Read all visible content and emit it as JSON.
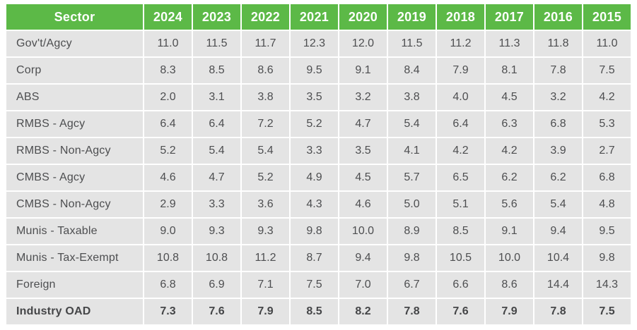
{
  "colors": {
    "header_bg": "#5cb947",
    "header_text": "#ffffff",
    "cell_bg": "#e4e4e4",
    "text": "#4d4e50"
  },
  "chart_data": {
    "type": "table",
    "columns": [
      "Sector",
      "2024",
      "2023",
      "2022",
      "2021",
      "2020",
      "2019",
      "2018",
      "2017",
      "2016",
      "2015"
    ],
    "rows": [
      {
        "label": "Gov't/Agcy",
        "bold": false,
        "values": [
          "11.0",
          "11.5",
          "11.7",
          "12.3",
          "12.0",
          "11.5",
          "11.2",
          "11.3",
          "11.8",
          "11.0"
        ]
      },
      {
        "label": "Corp",
        "bold": false,
        "values": [
          "8.3",
          "8.5",
          "8.6",
          "9.5",
          "9.1",
          "8.4",
          "7.9",
          "8.1",
          "7.8",
          "7.5"
        ]
      },
      {
        "label": "ABS",
        "bold": false,
        "values": [
          "2.0",
          "3.1",
          "3.8",
          "3.5",
          "3.2",
          "3.8",
          "4.0",
          "4.5",
          "3.2",
          "4.2"
        ]
      },
      {
        "label": "RMBS - Agcy",
        "bold": false,
        "values": [
          "6.4",
          "6.4",
          "7.2",
          "5.2",
          "4.7",
          "5.4",
          "6.4",
          "6.3",
          "6.8",
          "5.3"
        ]
      },
      {
        "label": "RMBS - Non-Agcy",
        "bold": false,
        "values": [
          "5.2",
          "5.4",
          "5.4",
          "3.3",
          "3.5",
          "4.1",
          "4.2",
          "4.2",
          "3.9",
          "2.7"
        ]
      },
      {
        "label": "CMBS - Agcy",
        "bold": false,
        "values": [
          "4.6",
          "4.7",
          "5.2",
          "4.9",
          "4.5",
          "5.7",
          "6.5",
          "6.2",
          "6.2",
          "6.8"
        ]
      },
      {
        "label": "CMBS - Non-Agcy",
        "bold": false,
        "values": [
          "2.9",
          "3.3",
          "3.6",
          "4.3",
          "4.6",
          "5.0",
          "5.1",
          "5.6",
          "5.4",
          "4.8"
        ]
      },
      {
        "label": "Munis - Taxable",
        "bold": false,
        "values": [
          "9.0",
          "9.3",
          "9.3",
          "9.8",
          "10.0",
          "8.9",
          "8.5",
          "9.1",
          "9.4",
          "9.5"
        ]
      },
      {
        "label": "Munis - Tax-Exempt",
        "bold": false,
        "values": [
          "10.8",
          "10.8",
          "11.2",
          "8.7",
          "9.4",
          "9.8",
          "10.5",
          "10.0",
          "10.4",
          "9.8"
        ]
      },
      {
        "label": "Foreign",
        "bold": false,
        "values": [
          "6.8",
          "6.9",
          "7.1",
          "7.5",
          "7.0",
          "6.7",
          "6.6",
          "8.6",
          "14.4",
          "14.3"
        ]
      },
      {
        "label": "Industry OAD",
        "bold": true,
        "values": [
          "7.3",
          "7.6",
          "7.9",
          "8.5",
          "8.2",
          "7.8",
          "7.6",
          "7.9",
          "7.8",
          "7.5"
        ]
      }
    ]
  }
}
